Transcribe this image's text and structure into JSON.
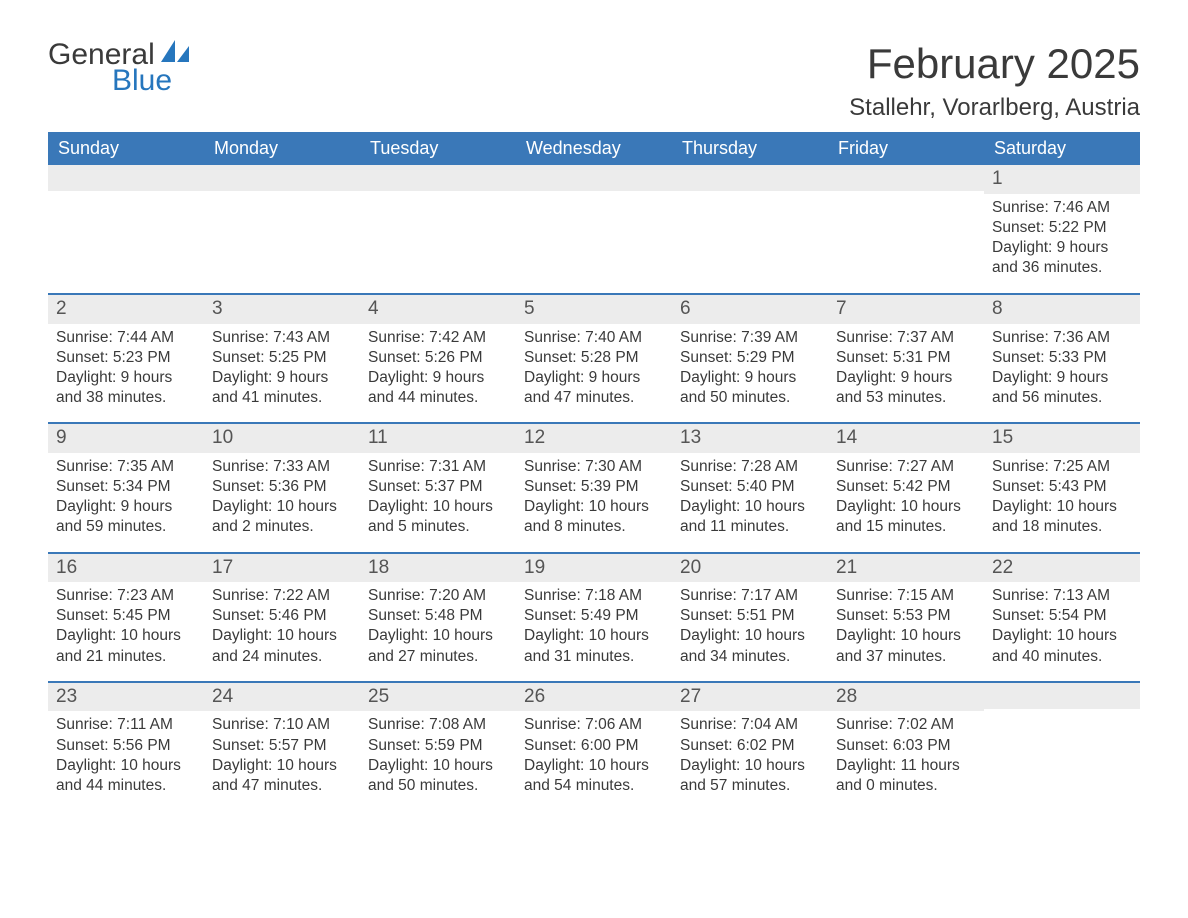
{
  "logo": {
    "text_general": "General",
    "text_blue": "Blue",
    "brand_color": "#2676bd",
    "text_color": "#3a3a3a"
  },
  "title": {
    "month_year": "February 2025",
    "location": "Stallehr, Vorarlberg, Austria"
  },
  "calendar": {
    "header_bg": "#3a78b8",
    "header_fg": "#ffffff",
    "cell_bar_bg": "#ececec",
    "rule_color": "#3a78b8",
    "day_headers": [
      "Sunday",
      "Monday",
      "Tuesday",
      "Wednesday",
      "Thursday",
      "Friday",
      "Saturday"
    ],
    "weeks": [
      [
        {
          "empty": true
        },
        {
          "empty": true
        },
        {
          "empty": true
        },
        {
          "empty": true
        },
        {
          "empty": true
        },
        {
          "empty": true
        },
        {
          "num": "1",
          "sunrise": "Sunrise: 7:46 AM",
          "sunset": "Sunset: 5:22 PM",
          "daylight1": "Daylight: 9 hours",
          "daylight2": "and 36 minutes."
        }
      ],
      [
        {
          "num": "2",
          "sunrise": "Sunrise: 7:44 AM",
          "sunset": "Sunset: 5:23 PM",
          "daylight1": "Daylight: 9 hours",
          "daylight2": "and 38 minutes."
        },
        {
          "num": "3",
          "sunrise": "Sunrise: 7:43 AM",
          "sunset": "Sunset: 5:25 PM",
          "daylight1": "Daylight: 9 hours",
          "daylight2": "and 41 minutes."
        },
        {
          "num": "4",
          "sunrise": "Sunrise: 7:42 AM",
          "sunset": "Sunset: 5:26 PM",
          "daylight1": "Daylight: 9 hours",
          "daylight2": "and 44 minutes."
        },
        {
          "num": "5",
          "sunrise": "Sunrise: 7:40 AM",
          "sunset": "Sunset: 5:28 PM",
          "daylight1": "Daylight: 9 hours",
          "daylight2": "and 47 minutes."
        },
        {
          "num": "6",
          "sunrise": "Sunrise: 7:39 AM",
          "sunset": "Sunset: 5:29 PM",
          "daylight1": "Daylight: 9 hours",
          "daylight2": "and 50 minutes."
        },
        {
          "num": "7",
          "sunrise": "Sunrise: 7:37 AM",
          "sunset": "Sunset: 5:31 PM",
          "daylight1": "Daylight: 9 hours",
          "daylight2": "and 53 minutes."
        },
        {
          "num": "8",
          "sunrise": "Sunrise: 7:36 AM",
          "sunset": "Sunset: 5:33 PM",
          "daylight1": "Daylight: 9 hours",
          "daylight2": "and 56 minutes."
        }
      ],
      [
        {
          "num": "9",
          "sunrise": "Sunrise: 7:35 AM",
          "sunset": "Sunset: 5:34 PM",
          "daylight1": "Daylight: 9 hours",
          "daylight2": "and 59 minutes."
        },
        {
          "num": "10",
          "sunrise": "Sunrise: 7:33 AM",
          "sunset": "Sunset: 5:36 PM",
          "daylight1": "Daylight: 10 hours",
          "daylight2": "and 2 minutes."
        },
        {
          "num": "11",
          "sunrise": "Sunrise: 7:31 AM",
          "sunset": "Sunset: 5:37 PM",
          "daylight1": "Daylight: 10 hours",
          "daylight2": "and 5 minutes."
        },
        {
          "num": "12",
          "sunrise": "Sunrise: 7:30 AM",
          "sunset": "Sunset: 5:39 PM",
          "daylight1": "Daylight: 10 hours",
          "daylight2": "and 8 minutes."
        },
        {
          "num": "13",
          "sunrise": "Sunrise: 7:28 AM",
          "sunset": "Sunset: 5:40 PM",
          "daylight1": "Daylight: 10 hours",
          "daylight2": "and 11 minutes."
        },
        {
          "num": "14",
          "sunrise": "Sunrise: 7:27 AM",
          "sunset": "Sunset: 5:42 PM",
          "daylight1": "Daylight: 10 hours",
          "daylight2": "and 15 minutes."
        },
        {
          "num": "15",
          "sunrise": "Sunrise: 7:25 AM",
          "sunset": "Sunset: 5:43 PM",
          "daylight1": "Daylight: 10 hours",
          "daylight2": "and 18 minutes."
        }
      ],
      [
        {
          "num": "16",
          "sunrise": "Sunrise: 7:23 AM",
          "sunset": "Sunset: 5:45 PM",
          "daylight1": "Daylight: 10 hours",
          "daylight2": "and 21 minutes."
        },
        {
          "num": "17",
          "sunrise": "Sunrise: 7:22 AM",
          "sunset": "Sunset: 5:46 PM",
          "daylight1": "Daylight: 10 hours",
          "daylight2": "and 24 minutes."
        },
        {
          "num": "18",
          "sunrise": "Sunrise: 7:20 AM",
          "sunset": "Sunset: 5:48 PM",
          "daylight1": "Daylight: 10 hours",
          "daylight2": "and 27 minutes."
        },
        {
          "num": "19",
          "sunrise": "Sunrise: 7:18 AM",
          "sunset": "Sunset: 5:49 PM",
          "daylight1": "Daylight: 10 hours",
          "daylight2": "and 31 minutes."
        },
        {
          "num": "20",
          "sunrise": "Sunrise: 7:17 AM",
          "sunset": "Sunset: 5:51 PM",
          "daylight1": "Daylight: 10 hours",
          "daylight2": "and 34 minutes."
        },
        {
          "num": "21",
          "sunrise": "Sunrise: 7:15 AM",
          "sunset": "Sunset: 5:53 PM",
          "daylight1": "Daylight: 10 hours",
          "daylight2": "and 37 minutes."
        },
        {
          "num": "22",
          "sunrise": "Sunrise: 7:13 AM",
          "sunset": "Sunset: 5:54 PM",
          "daylight1": "Daylight: 10 hours",
          "daylight2": "and 40 minutes."
        }
      ],
      [
        {
          "num": "23",
          "sunrise": "Sunrise: 7:11 AM",
          "sunset": "Sunset: 5:56 PM",
          "daylight1": "Daylight: 10 hours",
          "daylight2": "and 44 minutes."
        },
        {
          "num": "24",
          "sunrise": "Sunrise: 7:10 AM",
          "sunset": "Sunset: 5:57 PM",
          "daylight1": "Daylight: 10 hours",
          "daylight2": "and 47 minutes."
        },
        {
          "num": "25",
          "sunrise": "Sunrise: 7:08 AM",
          "sunset": "Sunset: 5:59 PM",
          "daylight1": "Daylight: 10 hours",
          "daylight2": "and 50 minutes."
        },
        {
          "num": "26",
          "sunrise": "Sunrise: 7:06 AM",
          "sunset": "Sunset: 6:00 PM",
          "daylight1": "Daylight: 10 hours",
          "daylight2": "and 54 minutes."
        },
        {
          "num": "27",
          "sunrise": "Sunrise: 7:04 AM",
          "sunset": "Sunset: 6:02 PM",
          "daylight1": "Daylight: 10 hours",
          "daylight2": "and 57 minutes."
        },
        {
          "num": "28",
          "sunrise": "Sunrise: 7:02 AM",
          "sunset": "Sunset: 6:03 PM",
          "daylight1": "Daylight: 11 hours",
          "daylight2": "and 0 minutes."
        },
        {
          "empty": true
        }
      ]
    ]
  }
}
